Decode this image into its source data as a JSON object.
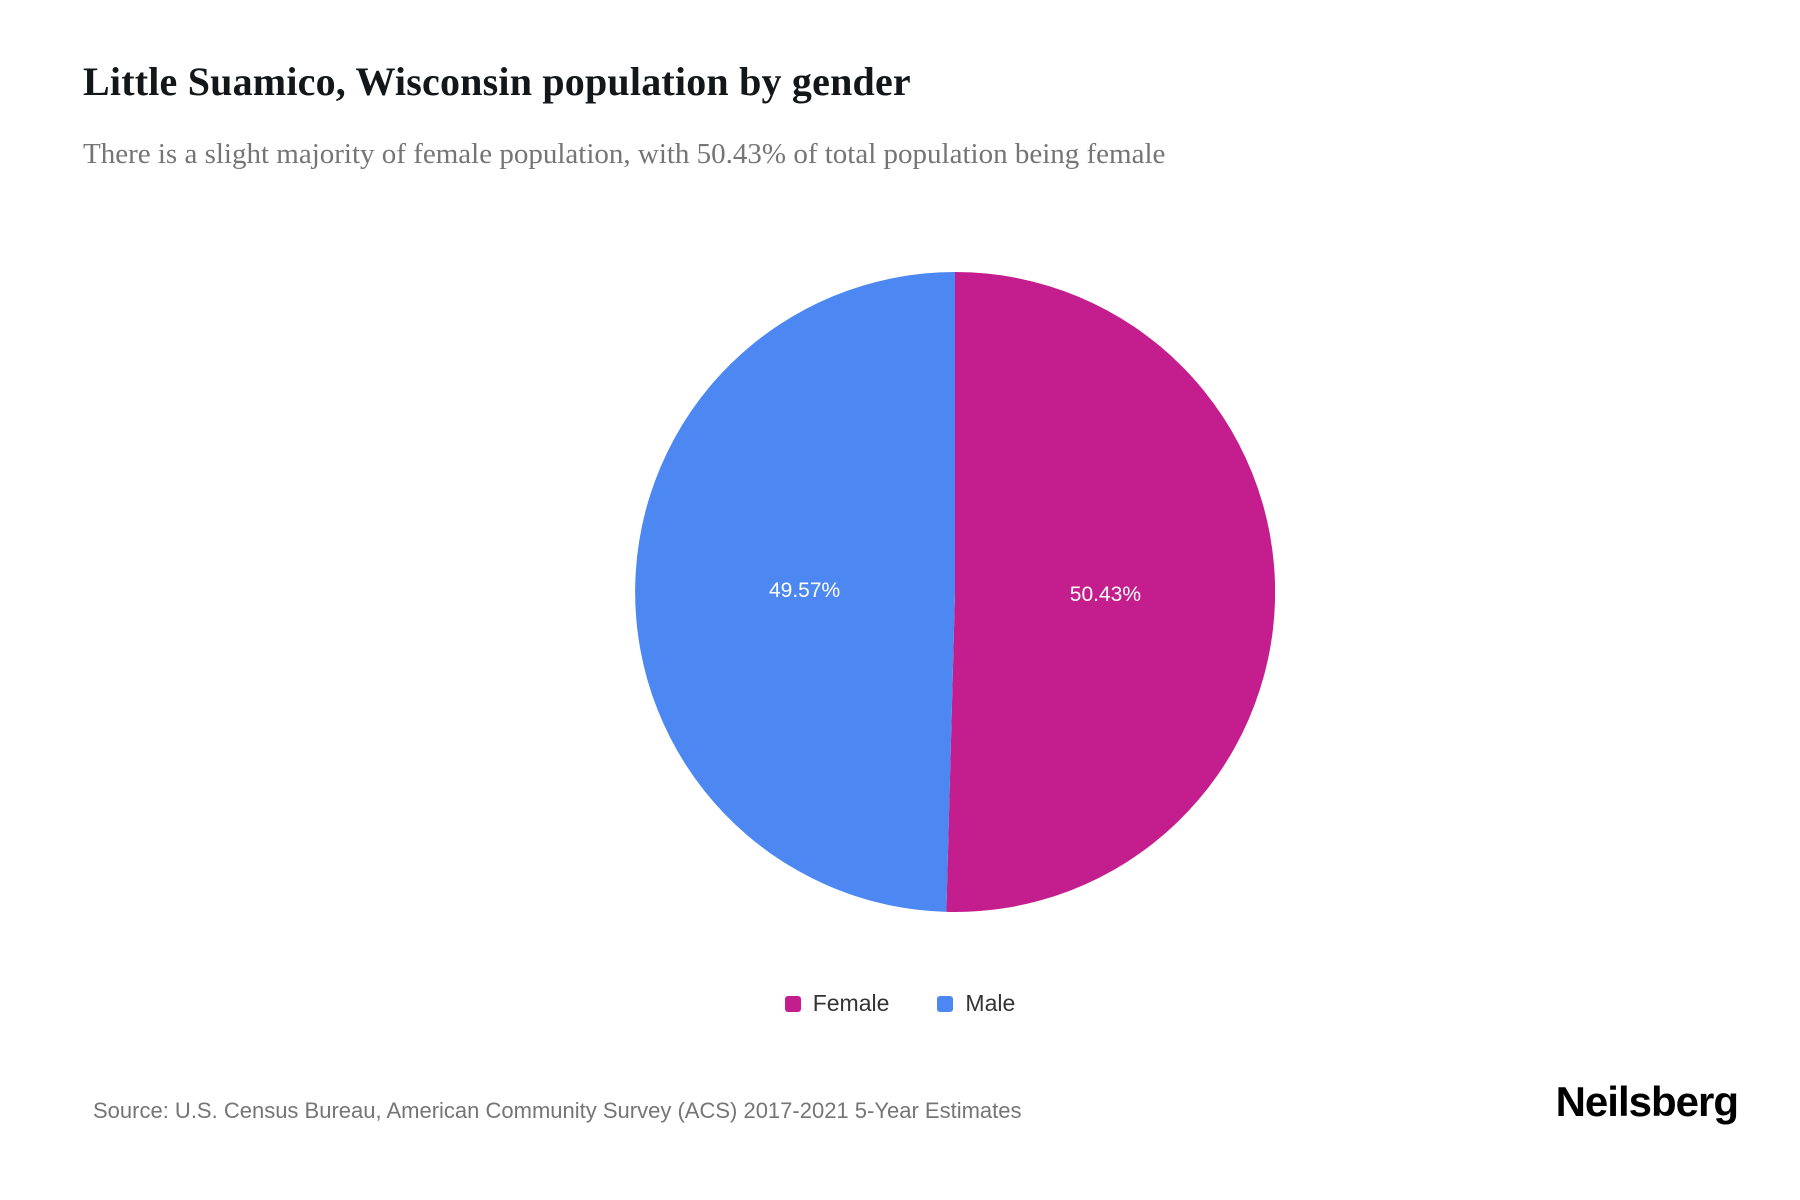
{
  "page": {
    "title": "Little Suamico, Wisconsin population by gender",
    "subtitle": "There is a slight majority of female population, with 50.43% of total population being female",
    "source": "Source: U.S. Census Bureau, American Community Survey (ACS) 2017-2021 5-Year Estimates",
    "brand": "Neilsberg"
  },
  "chart_data": {
    "type": "pie",
    "title": "Little Suamico, Wisconsin population by gender",
    "subtitle": "There is a slight majority of female population, with 50.43% of total population being female",
    "slices": [
      {
        "label": "Female",
        "value": 50.43,
        "display": "50.43%",
        "color": "#c41d8e"
      },
      {
        "label": "Male",
        "value": 49.57,
        "display": "49.57%",
        "color": "#4d87f2"
      }
    ],
    "start_angle_deg": 0,
    "direction": "clockwise",
    "legend_position": "bottom",
    "label_radius_ratio": 0.47,
    "background": "#ffffff"
  }
}
